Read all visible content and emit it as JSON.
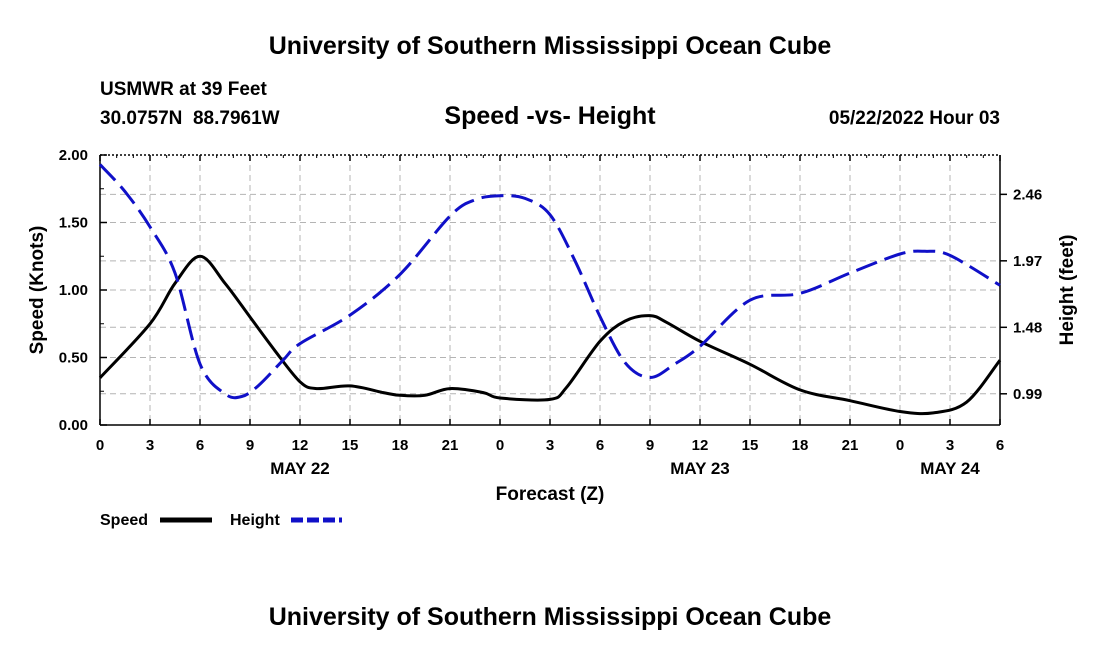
{
  "header": {
    "title": "University of Southern Mississippi Ocean Cube",
    "station": "USMWR at 39 Feet",
    "coords": "30.0757N  88.7961W",
    "subtitle": "Speed -vs- Height",
    "timestamp": "05/22/2022 Hour 03"
  },
  "footer": {
    "title": "University of Southern Mississippi Ocean Cube"
  },
  "legend": {
    "speed_label": "Speed",
    "height_label": "Height"
  },
  "colors": {
    "speed": "#000000",
    "height": "#1010c8",
    "grid": "#b4b4b4"
  },
  "chart_data": {
    "type": "line",
    "title": "Speed -vs- Height",
    "xlabel": "Forecast (Z)",
    "ylabel": "Speed (Knots)",
    "y2label": "Height (feet)",
    "x_range": [
      0,
      54
    ],
    "x_ticks": [
      0,
      3,
      6,
      9,
      12,
      15,
      18,
      21,
      24,
      27,
      30,
      33,
      36,
      39,
      42,
      45,
      48,
      51,
      54
    ],
    "x_tick_labels": [
      "0",
      "3",
      "6",
      "9",
      "12",
      "15",
      "18",
      "21",
      "0",
      "3",
      "6",
      "9",
      "12",
      "15",
      "18",
      "21",
      "0",
      "3",
      "6"
    ],
    "date_labels": [
      {
        "x": 12,
        "label": "MAY 22"
      },
      {
        "x": 36,
        "label": "MAY 23"
      },
      {
        "x": 51,
        "label": "MAY 24"
      }
    ],
    "ylim": [
      0,
      2.0
    ],
    "y_ticks": [
      0,
      0.5,
      1.0,
      1.5,
      2.0
    ],
    "y_tick_labels": [
      "0.00",
      "0.50",
      "1.00",
      "1.50",
      "2.00"
    ],
    "y2lim": [
      0.76,
      2.75
    ],
    "y2_ticks": [
      0.99,
      1.48,
      1.97,
      2.46
    ],
    "y2_tick_labels": [
      "0.99",
      "1.48",
      "1.97",
      "2.46"
    ],
    "grid": true,
    "series": [
      {
        "name": "Speed",
        "axis": "left",
        "style": "solid",
        "x": [
          0,
          3,
          4.5,
          6,
          7.5,
          9,
          10.5,
          12,
          13,
          15,
          17,
          18,
          19.5,
          21,
          23,
          24,
          27,
          28,
          30,
          31.5,
          33,
          34,
          36,
          39,
          42,
          45,
          48,
          50,
          52,
          54
        ],
        "y": [
          0.35,
          0.75,
          1.05,
          1.25,
          1.05,
          0.8,
          0.55,
          0.32,
          0.27,
          0.29,
          0.24,
          0.22,
          0.22,
          0.27,
          0.24,
          0.2,
          0.19,
          0.28,
          0.62,
          0.77,
          0.81,
          0.76,
          0.62,
          0.45,
          0.26,
          0.18,
          0.1,
          0.09,
          0.17,
          0.48
        ]
      },
      {
        "name": "Height",
        "axis": "right",
        "style": "dashed",
        "x": [
          0,
          1.5,
          3,
          4.5,
          6,
          7.5,
          8.5,
          9.5,
          11,
          12,
          15,
          18,
          21,
          22.5,
          24,
          25.5,
          27,
          28.5,
          30,
          31.5,
          33,
          34.5,
          36,
          39,
          42,
          45,
          48,
          49.5,
          51,
          54
        ],
        "y": [
          2.68,
          2.48,
          2.22,
          1.88,
          1.21,
          0.99,
          0.97,
          1.05,
          1.24,
          1.36,
          1.57,
          1.87,
          2.3,
          2.42,
          2.45,
          2.43,
          2.31,
          1.97,
          1.56,
          1.22,
          1.11,
          1.21,
          1.34,
          1.68,
          1.73,
          1.88,
          2.02,
          2.04,
          2.01,
          1.79
        ]
      }
    ]
  }
}
